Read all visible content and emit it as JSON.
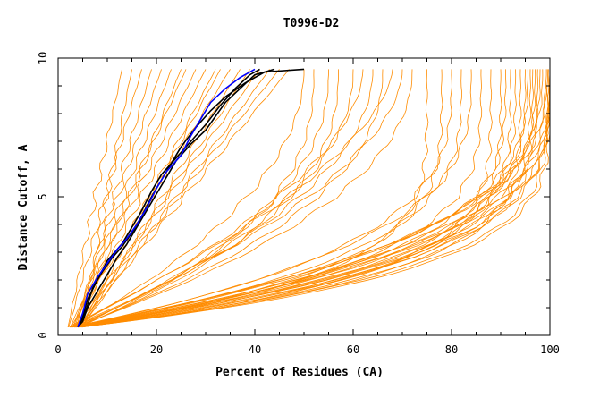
{
  "chart_data": {
    "type": "line",
    "title": "T0996-D2",
    "xlabel": "Percent of Residues (CA)",
    "ylabel": "Distance Cutoff, A",
    "xlim": [
      0,
      100
    ],
    "ylim": [
      0,
      10
    ],
    "x_ticks": [
      "0",
      "20",
      "40",
      "60",
      "80",
      "100"
    ],
    "y_ticks": [
      "0",
      "5",
      "10"
    ],
    "grid": false,
    "colors": {
      "other_models": "#ff8c00",
      "highlight_black": "#000000",
      "highlight_blue": "#0000ff"
    },
    "highlight_series": [
      {
        "color": "#000000",
        "points": [
          [
            4,
            0.3
          ],
          [
            5,
            0.6
          ],
          [
            6,
            1.1
          ],
          [
            7,
            1.7
          ],
          [
            9,
            2.3
          ],
          [
            11,
            2.8
          ],
          [
            13,
            3.2
          ],
          [
            15,
            3.7
          ],
          [
            17,
            4.3
          ],
          [
            19,
            5.0
          ],
          [
            21,
            5.6
          ],
          [
            23,
            6.2
          ],
          [
            25,
            6.8
          ],
          [
            28,
            7.5
          ],
          [
            31,
            8.1
          ],
          [
            34,
            8.6
          ],
          [
            38,
            9.1
          ],
          [
            42,
            9.5
          ],
          [
            50,
            9.6
          ]
        ]
      },
      {
        "color": "#000000",
        "points": [
          [
            4,
            0.3
          ],
          [
            5,
            0.7
          ],
          [
            6,
            1.3
          ],
          [
            8,
            2.0
          ],
          [
            10,
            2.7
          ],
          [
            13,
            3.3
          ],
          [
            15,
            3.9
          ],
          [
            17,
            4.5
          ],
          [
            19,
            5.2
          ],
          [
            21,
            5.8
          ],
          [
            24,
            6.4
          ],
          [
            27,
            7.0
          ],
          [
            30,
            7.6
          ],
          [
            33,
            8.3
          ],
          [
            36,
            8.9
          ],
          [
            39,
            9.4
          ],
          [
            41,
            9.6
          ]
        ]
      },
      {
        "color": "#000000",
        "points": [
          [
            4,
            0.3
          ],
          [
            5,
            0.5
          ],
          [
            6,
            1.0
          ],
          [
            8,
            1.6
          ],
          [
            10,
            2.2
          ],
          [
            12,
            2.8
          ],
          [
            14,
            3.3
          ],
          [
            16,
            3.9
          ],
          [
            18,
            4.5
          ],
          [
            20,
            5.1
          ],
          [
            22,
            5.7
          ],
          [
            24,
            6.3
          ],
          [
            27,
            6.9
          ],
          [
            30,
            7.4
          ],
          [
            32,
            7.9
          ],
          [
            34,
            8.4
          ],
          [
            37,
            8.9
          ],
          [
            40,
            9.4
          ],
          [
            44,
            9.6
          ]
        ]
      },
      {
        "color": "#0000ff",
        "points": [
          [
            4,
            0.3
          ],
          [
            5,
            0.8
          ],
          [
            6,
            1.5
          ],
          [
            8,
            2.1
          ],
          [
            10,
            2.6
          ],
          [
            12,
            3.1
          ],
          [
            14,
            3.5
          ],
          [
            16,
            4.0
          ],
          [
            18,
            4.6
          ],
          [
            20,
            5.3
          ],
          [
            22,
            5.9
          ],
          [
            25,
            6.5
          ],
          [
            27,
            7.2
          ],
          [
            29,
            7.8
          ],
          [
            31,
            8.4
          ],
          [
            34,
            8.9
          ],
          [
            37,
            9.3
          ],
          [
            40,
            9.6
          ]
        ]
      }
    ],
    "model_curve_end_percent_at_9_6A": [
      13,
      15,
      17,
      19,
      21,
      23,
      25,
      26,
      28,
      30,
      32,
      33,
      35,
      37,
      39,
      41,
      43,
      45,
      47,
      50,
      52,
      55,
      57,
      60,
      62,
      64,
      66,
      68,
      70,
      72,
      75,
      78,
      80,
      82,
      84,
      86,
      88,
      90,
      91,
      92,
      93,
      94,
      95,
      95.5,
      96,
      96.5,
      97,
      97.5,
      98,
      98.5,
      99,
      99.3,
      99.5,
      99.7,
      100,
      100,
      100,
      100,
      100
    ]
  }
}
